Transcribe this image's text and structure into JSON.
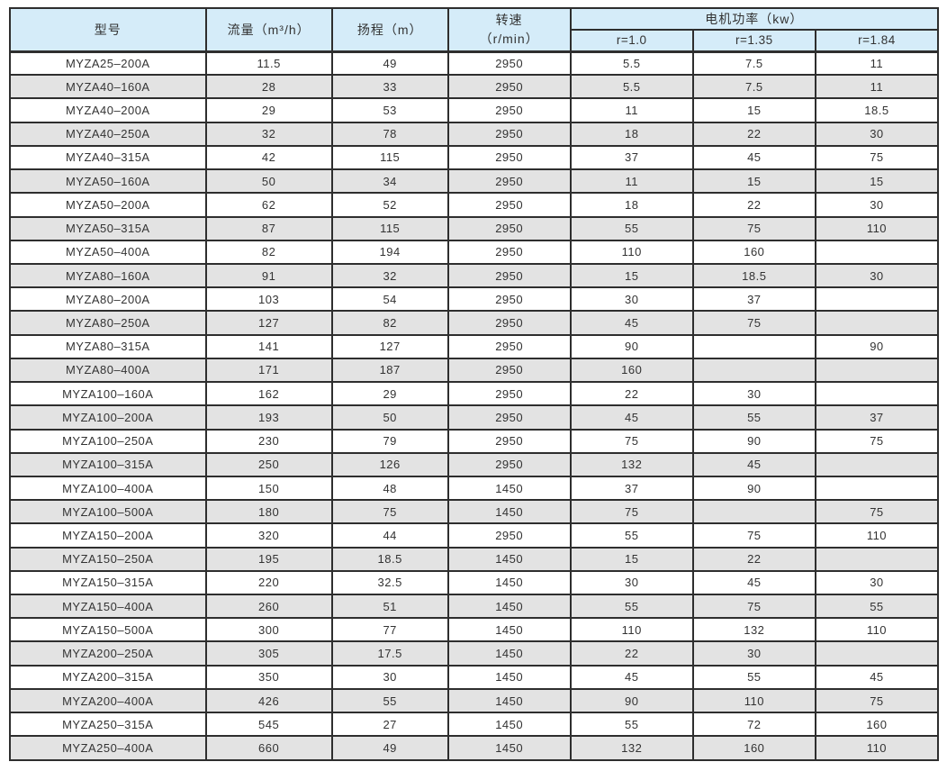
{
  "colors": {
    "header_bg": "#d5ecf9",
    "row_bg": "#ffffff",
    "row_alt_bg": "#e3e3e3",
    "border": "#2e2e2e",
    "text": "#333333"
  },
  "table": {
    "header": {
      "model": "型号",
      "flow": "流量（m³/h）",
      "head": "扬程（m）",
      "speed_line1": "转速",
      "speed_line2": "（r/min）",
      "power_group": "电机功率（kw）",
      "power_r1_0": "r=1.0",
      "power_r1_35": "r=1.35",
      "power_r1_84": "r=1.84"
    },
    "col_keys": [
      "model",
      "flow",
      "head",
      "speed",
      "power-r1-0",
      "power-r1-35",
      "power-r1-84"
    ],
    "rows": [
      [
        "MYZA25–200A",
        "11.5",
        "49",
        "2950",
        "5.5",
        "7.5",
        "11"
      ],
      [
        "MYZA40–160A",
        "28",
        "33",
        "2950",
        "5.5",
        "7.5",
        "11"
      ],
      [
        "MYZA40–200A",
        "29",
        "53",
        "2950",
        "11",
        "15",
        "18.5"
      ],
      [
        "MYZA40–250A",
        "32",
        "78",
        "2950",
        "18",
        "22",
        "30"
      ],
      [
        "MYZA40–315A",
        "42",
        "115",
        "2950",
        "37",
        "45",
        "75"
      ],
      [
        "MYZA50–160A",
        "50",
        "34",
        "2950",
        "11",
        "15",
        "15"
      ],
      [
        "MYZA50–200A",
        "62",
        "52",
        "2950",
        "18",
        "22",
        "30"
      ],
      [
        "MYZA50–315A",
        "87",
        "115",
        "2950",
        "55",
        "75",
        "110"
      ],
      [
        "MYZA50–400A",
        "82",
        "194",
        "2950",
        "110",
        "160",
        ""
      ],
      [
        "MYZA80–160A",
        "91",
        "32",
        "2950",
        "15",
        "18.5",
        "30"
      ],
      [
        "MYZA80–200A",
        "103",
        "54",
        "2950",
        "30",
        "37",
        ""
      ],
      [
        "MYZA80–250A",
        "127",
        "82",
        "2950",
        "45",
        "75",
        ""
      ],
      [
        "MYZA80–315A",
        "141",
        "127",
        "2950",
        "90",
        "",
        "90"
      ],
      [
        "MYZA80–400A",
        "171",
        "187",
        "2950",
        "160",
        "",
        ""
      ],
      [
        "MYZA100–160A",
        "162",
        "29",
        "2950",
        "22",
        "30",
        ""
      ],
      [
        "MYZA100–200A",
        "193",
        "50",
        "2950",
        "45",
        "55",
        "37"
      ],
      [
        "MYZA100–250A",
        "230",
        "79",
        "2950",
        "75",
        "90",
        "75"
      ],
      [
        "MYZA100–315A",
        "250",
        "126",
        "2950",
        "132",
        "45",
        ""
      ],
      [
        "MYZA100–400A",
        "150",
        "48",
        "1450",
        "37",
        "90",
        ""
      ],
      [
        "MYZA100–500A",
        "180",
        "75",
        "1450",
        "75",
        "",
        "75"
      ],
      [
        "MYZA150–200A",
        "320",
        "44",
        "2950",
        "55",
        "75",
        "110"
      ],
      [
        "MYZA150–250A",
        "195",
        "18.5",
        "1450",
        "15",
        "22",
        ""
      ],
      [
        "MYZA150–315A",
        "220",
        "32.5",
        "1450",
        "30",
        "45",
        "30"
      ],
      [
        "MYZA150–400A",
        "260",
        "51",
        "1450",
        "55",
        "75",
        "55"
      ],
      [
        "MYZA150–500A",
        "300",
        "77",
        "1450",
        "110",
        "132",
        "110"
      ],
      [
        "MYZA200–250A",
        "305",
        "17.5",
        "1450",
        "22",
        "30",
        ""
      ],
      [
        "MYZA200–315A",
        "350",
        "30",
        "1450",
        "45",
        "55",
        "45"
      ],
      [
        "MYZA200–400A",
        "426",
        "55",
        "1450",
        "90",
        "110",
        "75"
      ],
      [
        "MYZA250–315A",
        "545",
        "27",
        "1450",
        "55",
        "72",
        "160"
      ],
      [
        "MYZA250–400A",
        "660",
        "49",
        "1450",
        "132",
        "160",
        "110"
      ]
    ]
  }
}
